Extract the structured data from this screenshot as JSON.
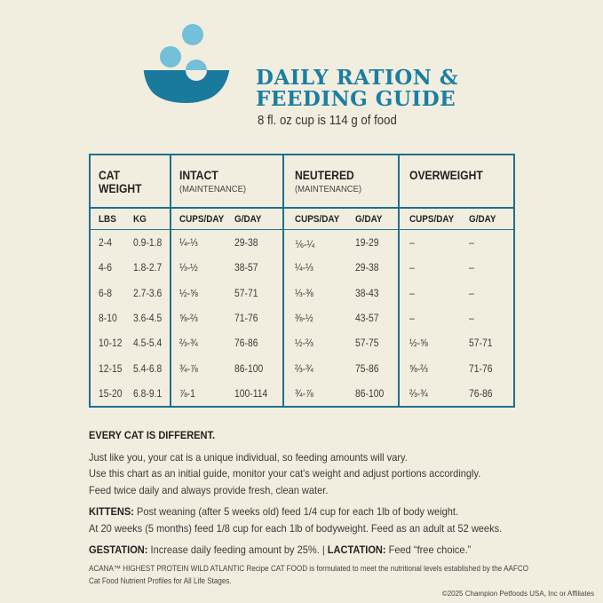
{
  "header": {
    "title_line1": "DAILY RATION &",
    "title_line2": "FEEDING GUIDE",
    "subtitle": "8 fl. oz cup is 114 g of food",
    "colors": {
      "accent": "#1b7ea3",
      "bowl": "#1a7a9e",
      "kibble": "#74bfd9",
      "background": "#f2eedf"
    }
  },
  "table": {
    "groups": [
      {
        "title": "CAT",
        "title2": "WEIGHT",
        "sub": ""
      },
      {
        "title": "INTACT",
        "sub": "(MAINTENANCE)"
      },
      {
        "title": "NEUTERED",
        "sub": "(MAINTENANCE)"
      },
      {
        "title": "OVERWEIGHT",
        "sub": ""
      }
    ],
    "columns": [
      "LBS",
      "KG",
      "CUPS/DAY",
      "G/DAY",
      "CUPS/DAY",
      "G/DAY",
      "CUPS/DAY",
      "G/DAY"
    ],
    "rows": [
      [
        "2-4",
        "0.9-1.8",
        "¼-⅓",
        "29-38",
        "⅙-¼",
        "19-29",
        "–",
        "–"
      ],
      [
        "4-6",
        "1.8-2.7",
        "⅓-½",
        "38-57",
        "¼-⅓",
        "29-38",
        "–",
        "–"
      ],
      [
        "6-8",
        "2.7-3.6",
        "½-⅝",
        "57-71",
        "⅓-⅜",
        "38-43",
        "–",
        "–"
      ],
      [
        "8-10",
        "3.6-4.5",
        "⅝-⅔",
        "71-76",
        "⅜-½",
        "43-57",
        "–",
        "–"
      ],
      [
        "10-12",
        "4.5-5.4",
        "⅔-¾",
        "76-86",
        "½-⅔",
        "57-75",
        "½-⅝",
        "57-71"
      ],
      [
        "12-15",
        "5.4-6.8",
        "¾-⅞",
        "86-100",
        "⅔-¾",
        "75-86",
        "⅝-⅔",
        "71-76"
      ],
      [
        "15-20",
        "6.8-9.1",
        "⅞-1",
        "100-114",
        "¾-⅞",
        "86-100",
        "⅔-¾",
        "76-86"
      ]
    ]
  },
  "notes": {
    "heading": "EVERY CAT IS DIFFERENT.",
    "line1": "Just like you, your cat is a unique individual, so feeding amounts will vary.",
    "line2": "Use this chart as an initial guide, monitor your cat's weight and adjust portions accordingly.",
    "line3": "Feed twice daily and always provide fresh, clean water.",
    "kittens_label": "KITTENS:",
    "kittens_text1": " Post weaning (after 5 weeks old) feed 1/4 cup for each 1lb of body weight.",
    "kittens_text2": "At 20 weeks (5 months) feed 1/8 cup for each 1lb of bodyweight. Feed as an adult at 52 weeks.",
    "gestation_label": "GESTATION:",
    "gestation_text": " Increase daily feeding amount by 25%. | ",
    "lactation_label": "LACTATION:",
    "lactation_text": " Feed “free choice.”"
  },
  "fineprint": {
    "line1": "ACANA™ HIGHEST PROTEIN WILD ATLANTIC Recipe CAT FOOD is formulated to meet the nutritional levels established by the AAFCO",
    "line2": "Cat Food Nutrient Profiles for All Life Stages."
  },
  "copyright": "©2025 Champion Petfoods USA, Inc or Affiliates"
}
